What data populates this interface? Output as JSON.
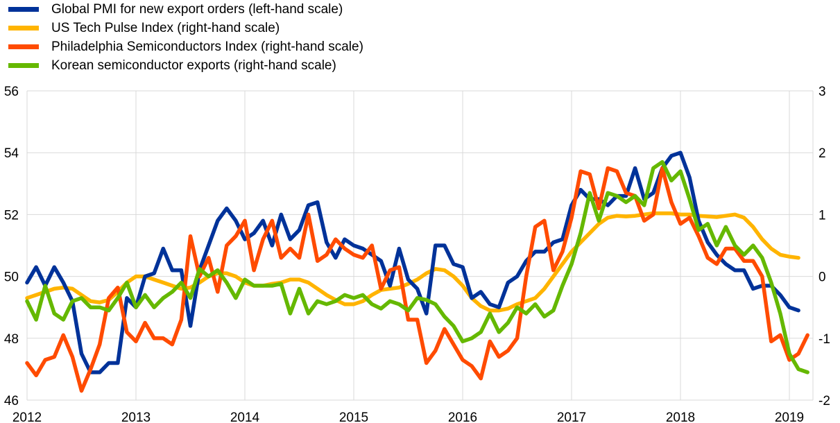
{
  "chart_data": {
    "type": "line",
    "title": "",
    "xlabel": "",
    "ylabel_left": "",
    "ylabel_right": "",
    "legend_position": "top-left",
    "grid": true,
    "x_start": "2012-01",
    "x_ticks": [
      "2012",
      "2013",
      "2014",
      "2015",
      "2016",
      "2017",
      "2018",
      "2019"
    ],
    "y_left_range": [
      46,
      56
    ],
    "y_left_ticks": [
      "46",
      "48",
      "50",
      "52",
      "54",
      "56"
    ],
    "y_right_range": [
      -2,
      3
    ],
    "y_right_ticks": [
      "-2",
      "-1",
      "0",
      "1",
      "2",
      "3"
    ],
    "series": [
      {
        "name": "Global PMI for new export orders (left-hand scale)",
        "axis": "left",
        "color": "#003299",
        "values": [
          49.8,
          50.3,
          49.7,
          50.3,
          49.8,
          49.2,
          47.5,
          46.9,
          46.9,
          47.2,
          47.2,
          49.3,
          49.0,
          50.0,
          50.1,
          50.9,
          50.2,
          50.2,
          48.4,
          50.2,
          51.0,
          51.8,
          52.2,
          51.8,
          51.2,
          51.4,
          51.8,
          51.0,
          52.0,
          51.2,
          51.5,
          52.3,
          52.4,
          51.1,
          50.6,
          51.2,
          51.0,
          50.9,
          50.7,
          50.5,
          49.7,
          50.9,
          49.9,
          49.6,
          48.8,
          51.0,
          51.0,
          50.4,
          50.3,
          49.3,
          49.5,
          49.1,
          49.0,
          49.8,
          50.0,
          50.5,
          50.8,
          50.8,
          51.1,
          51.2,
          52.3,
          52.8,
          52.5,
          52.5,
          52.3,
          52.6,
          52.6,
          53.5,
          52.5,
          52.7,
          53.5,
          53.9,
          54.0,
          53.2,
          51.8,
          51.1,
          50.7,
          50.4,
          50.2,
          50.2,
          49.6,
          49.7,
          49.7,
          49.4,
          49.0,
          48.9
        ]
      },
      {
        "name": "US Tech Pulse Index (right-hand scale)",
        "axis": "right",
        "color": "#FFB400",
        "values": [
          -0.35,
          -0.3,
          -0.25,
          -0.2,
          -0.18,
          -0.2,
          -0.3,
          -0.4,
          -0.42,
          -0.38,
          -0.25,
          -0.1,
          0.0,
          0.0,
          -0.05,
          -0.1,
          -0.15,
          -0.2,
          -0.18,
          -0.1,
          0.0,
          0.05,
          0.05,
          0.0,
          -0.1,
          -0.15,
          -0.15,
          -0.12,
          -0.1,
          -0.05,
          -0.05,
          -0.1,
          -0.2,
          -0.3,
          -0.38,
          -0.45,
          -0.45,
          -0.4,
          -0.3,
          -0.22,
          -0.2,
          -0.18,
          -0.12,
          -0.05,
          0.05,
          0.12,
          0.1,
          0.0,
          -0.15,
          -0.35,
          -0.48,
          -0.55,
          -0.55,
          -0.52,
          -0.45,
          -0.4,
          -0.35,
          -0.2,
          0.0,
          0.2,
          0.4,
          0.55,
          0.7,
          0.85,
          0.95,
          0.98,
          0.97,
          0.98,
          1.0,
          1.02,
          1.02,
          1.02,
          1.0,
          1.0,
          0.98,
          0.97,
          0.96,
          0.98,
          1.0,
          0.95,
          0.8,
          0.6,
          0.45,
          0.35,
          0.32,
          0.3
        ]
      },
      {
        "name": "Philadelphia Semiconductors Index (right-hand scale)",
        "axis": "right",
        "color": "#FF4B00",
        "values": [
          -1.4,
          -1.6,
          -1.35,
          -1.3,
          -0.95,
          -1.3,
          -1.85,
          -1.5,
          -1.1,
          -0.35,
          -0.18,
          -0.9,
          -1.05,
          -0.75,
          -1.0,
          -1.0,
          -1.1,
          -0.7,
          0.65,
          0.0,
          0.3,
          -0.25,
          0.5,
          0.65,
          0.9,
          0.1,
          0.6,
          0.9,
          0.3,
          0.45,
          0.3,
          1.0,
          0.25,
          0.35,
          0.6,
          0.45,
          0.35,
          0.3,
          0.5,
          -0.2,
          0.1,
          0.15,
          -0.7,
          -0.7,
          -1.4,
          -1.2,
          -0.85,
          -1.1,
          -1.35,
          -1.45,
          -1.65,
          -1.05,
          -1.3,
          -1.2,
          -1.0,
          0.0,
          0.8,
          0.9,
          0.1,
          0.4,
          0.95,
          1.7,
          1.65,
          1.1,
          1.75,
          1.7,
          1.35,
          1.3,
          0.9,
          1.0,
          1.75,
          1.2,
          0.85,
          0.95,
          0.65,
          0.3,
          0.2,
          0.45,
          0.45,
          0.25,
          0.25,
          0.0,
          -1.05,
          -0.95,
          -1.35,
          -1.25,
          -0.95
        ]
      },
      {
        "name": "Korean semiconductor exports (right-hand scale)",
        "axis": "right",
        "color": "#65B800",
        "values": [
          -0.4,
          -0.7,
          -0.15,
          -0.6,
          -0.7,
          -0.4,
          -0.35,
          -0.5,
          -0.5,
          -0.55,
          -0.35,
          -0.1,
          -0.5,
          -0.3,
          -0.5,
          -0.35,
          -0.25,
          -0.1,
          -0.35,
          0.12,
          0.0,
          0.1,
          -0.1,
          -0.35,
          -0.05,
          -0.15,
          -0.15,
          -0.15,
          -0.12,
          -0.6,
          -0.2,
          -0.6,
          -0.4,
          -0.45,
          -0.4,
          -0.3,
          -0.35,
          -0.3,
          -0.45,
          -0.52,
          -0.4,
          -0.45,
          -0.55,
          -0.35,
          -0.38,
          -0.45,
          -0.65,
          -0.8,
          -1.05,
          -1.0,
          -0.9,
          -0.6,
          -0.9,
          -0.75,
          -0.5,
          -0.6,
          -0.45,
          -0.65,
          -0.55,
          -0.15,
          0.2,
          0.7,
          1.35,
          0.9,
          1.35,
          1.3,
          1.2,
          1.3,
          1.15,
          1.75,
          1.85,
          1.55,
          1.7,
          1.25,
          0.75,
          0.85,
          0.5,
          0.8,
          0.5,
          0.35,
          0.5,
          0.3,
          -0.1,
          -0.6,
          -1.25,
          -1.5,
          -1.55
        ]
      }
    ]
  }
}
